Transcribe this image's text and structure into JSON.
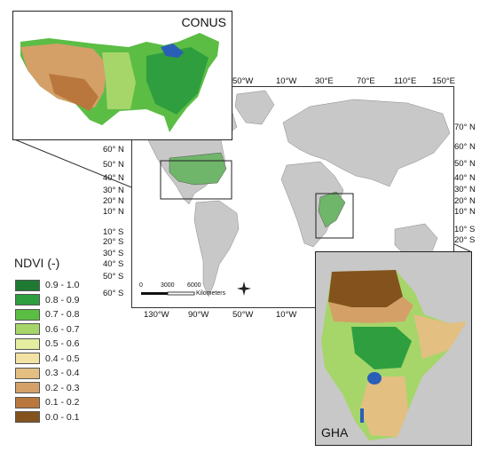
{
  "insets": {
    "conus": {
      "title": "CONUS"
    },
    "gha": {
      "title": "GHA"
    }
  },
  "map": {
    "top_longitudes": [
      "50°W",
      "10°W",
      "30°E",
      "70°E",
      "110°E",
      "150°E"
    ],
    "bottom_longitudes": [
      "130°W",
      "90°W",
      "50°W",
      "10°W"
    ],
    "left_latitudes": [
      "60° N",
      "50° N",
      "40° N",
      "30° N",
      "20° N",
      "10° N",
      "10° S",
      "20° S",
      "30° S",
      "40° S",
      "50° S",
      "60° S"
    ],
    "right_latitudes": [
      "70° N",
      "60° N",
      "50° N",
      "40° N",
      "30° N",
      "20° N",
      "10° N",
      "10° S",
      "20° S"
    ],
    "scalebar": {
      "ticks": [
        "0",
        "3000",
        "6000"
      ],
      "unit": "Kilometers"
    }
  },
  "legend": {
    "title": "NDVI (-)",
    "items": [
      {
        "label": "0.9 - 1.0",
        "color": "#1e7a33"
      },
      {
        "label": "0.8 - 0.9",
        "color": "#2f9e3f"
      },
      {
        "label": "0.7 - 0.8",
        "color": "#5cbd45"
      },
      {
        "label": "0.6 - 0.7",
        "color": "#a6d66a"
      },
      {
        "label": "0.5 - 0.6",
        "color": "#e4eda0"
      },
      {
        "label": "0.4 - 0.5",
        "color": "#f2e3a4"
      },
      {
        "label": "0.3 - 0.4",
        "color": "#e3bf82"
      },
      {
        "label": "0.2 - 0.3",
        "color": "#d4a068"
      },
      {
        "label": "0.1 - 0.2",
        "color": "#b9773d"
      },
      {
        "label": "0.0 - 0.1",
        "color": "#83521d"
      }
    ]
  },
  "colors": {
    "land": "#c8c8c8",
    "study_area": "#6fb56a",
    "water": "#ffffff",
    "lake": "#2a5fb8"
  }
}
